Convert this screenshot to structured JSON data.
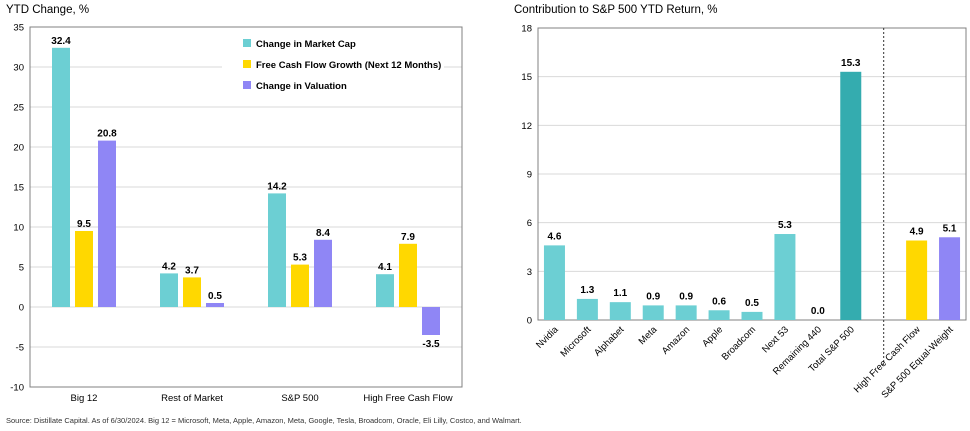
{
  "source_note": "Source: Distillate Capital. As of 6/30/2024. Big 12 = Microsoft, Meta, Apple, Amazon, Meta, Google, Tesla, Broadcom, Oracle, Eli Lilly, Costco, and Walmart.",
  "colors": {
    "teal": "#6ccfd3",
    "yellow": "#ffd800",
    "purple": "#8f86f5",
    "dark_teal": "#34acaf",
    "grid": "#d9d9d9"
  },
  "chart_data": [
    {
      "type": "bar",
      "title": "YTD Change, %",
      "categories": [
        "Big 12",
        "Rest of Market",
        "S&P 500",
        "High Free Cash Flow"
      ],
      "series": [
        {
          "name": "Change in Market Cap",
          "values": [
            32.4,
            4.2,
            14.2,
            4.1
          ]
        },
        {
          "name": "Free Cash Flow Growth (Next 12 Months)",
          "values": [
            9.5,
            3.7,
            5.3,
            7.9
          ]
        },
        {
          "name": "Change in Valuation",
          "values": [
            20.8,
            0.5,
            8.4,
            -3.5
          ]
        }
      ],
      "ylim": [
        -10,
        35
      ],
      "yticks": [
        -10,
        -5,
        0,
        5,
        10,
        15,
        20,
        25,
        30,
        35
      ],
      "grid": true,
      "legend": "top-right"
    },
    {
      "type": "bar",
      "title": "Contribution to S&P 500 YTD Return, %",
      "categories": [
        "Nvidia",
        "Microsoft",
        "Alphabet",
        "Meta",
        "Amazon",
        "Apple",
        "Broadcom",
        "Next 53",
        "Remaining 440",
        "Total  S&P 500",
        "High Free Cash Flow",
        "S&P 500 Equal-Weight"
      ],
      "values": [
        4.6,
        1.3,
        1.1,
        0.9,
        0.9,
        0.6,
        0.5,
        5.3,
        0.0,
        15.3,
        4.9,
        5.1
      ],
      "value_labels": [
        "4.6",
        "1.3",
        "1.1",
        "0.9",
        "0.9",
        "0.6",
        "0.5",
        "5.3",
        "0.0",
        "15.3",
        "4.9",
        "5.1"
      ],
      "bar_colors": [
        "teal",
        "teal",
        "teal",
        "teal",
        "teal",
        "teal",
        "teal",
        "teal",
        "teal",
        "dark_teal",
        "yellow",
        "purple"
      ],
      "ylim": [
        0,
        18
      ],
      "yticks": [
        0,
        3,
        6,
        9,
        12,
        15,
        18
      ],
      "grid": true,
      "divider_after": "Total  S&P 500"
    }
  ]
}
